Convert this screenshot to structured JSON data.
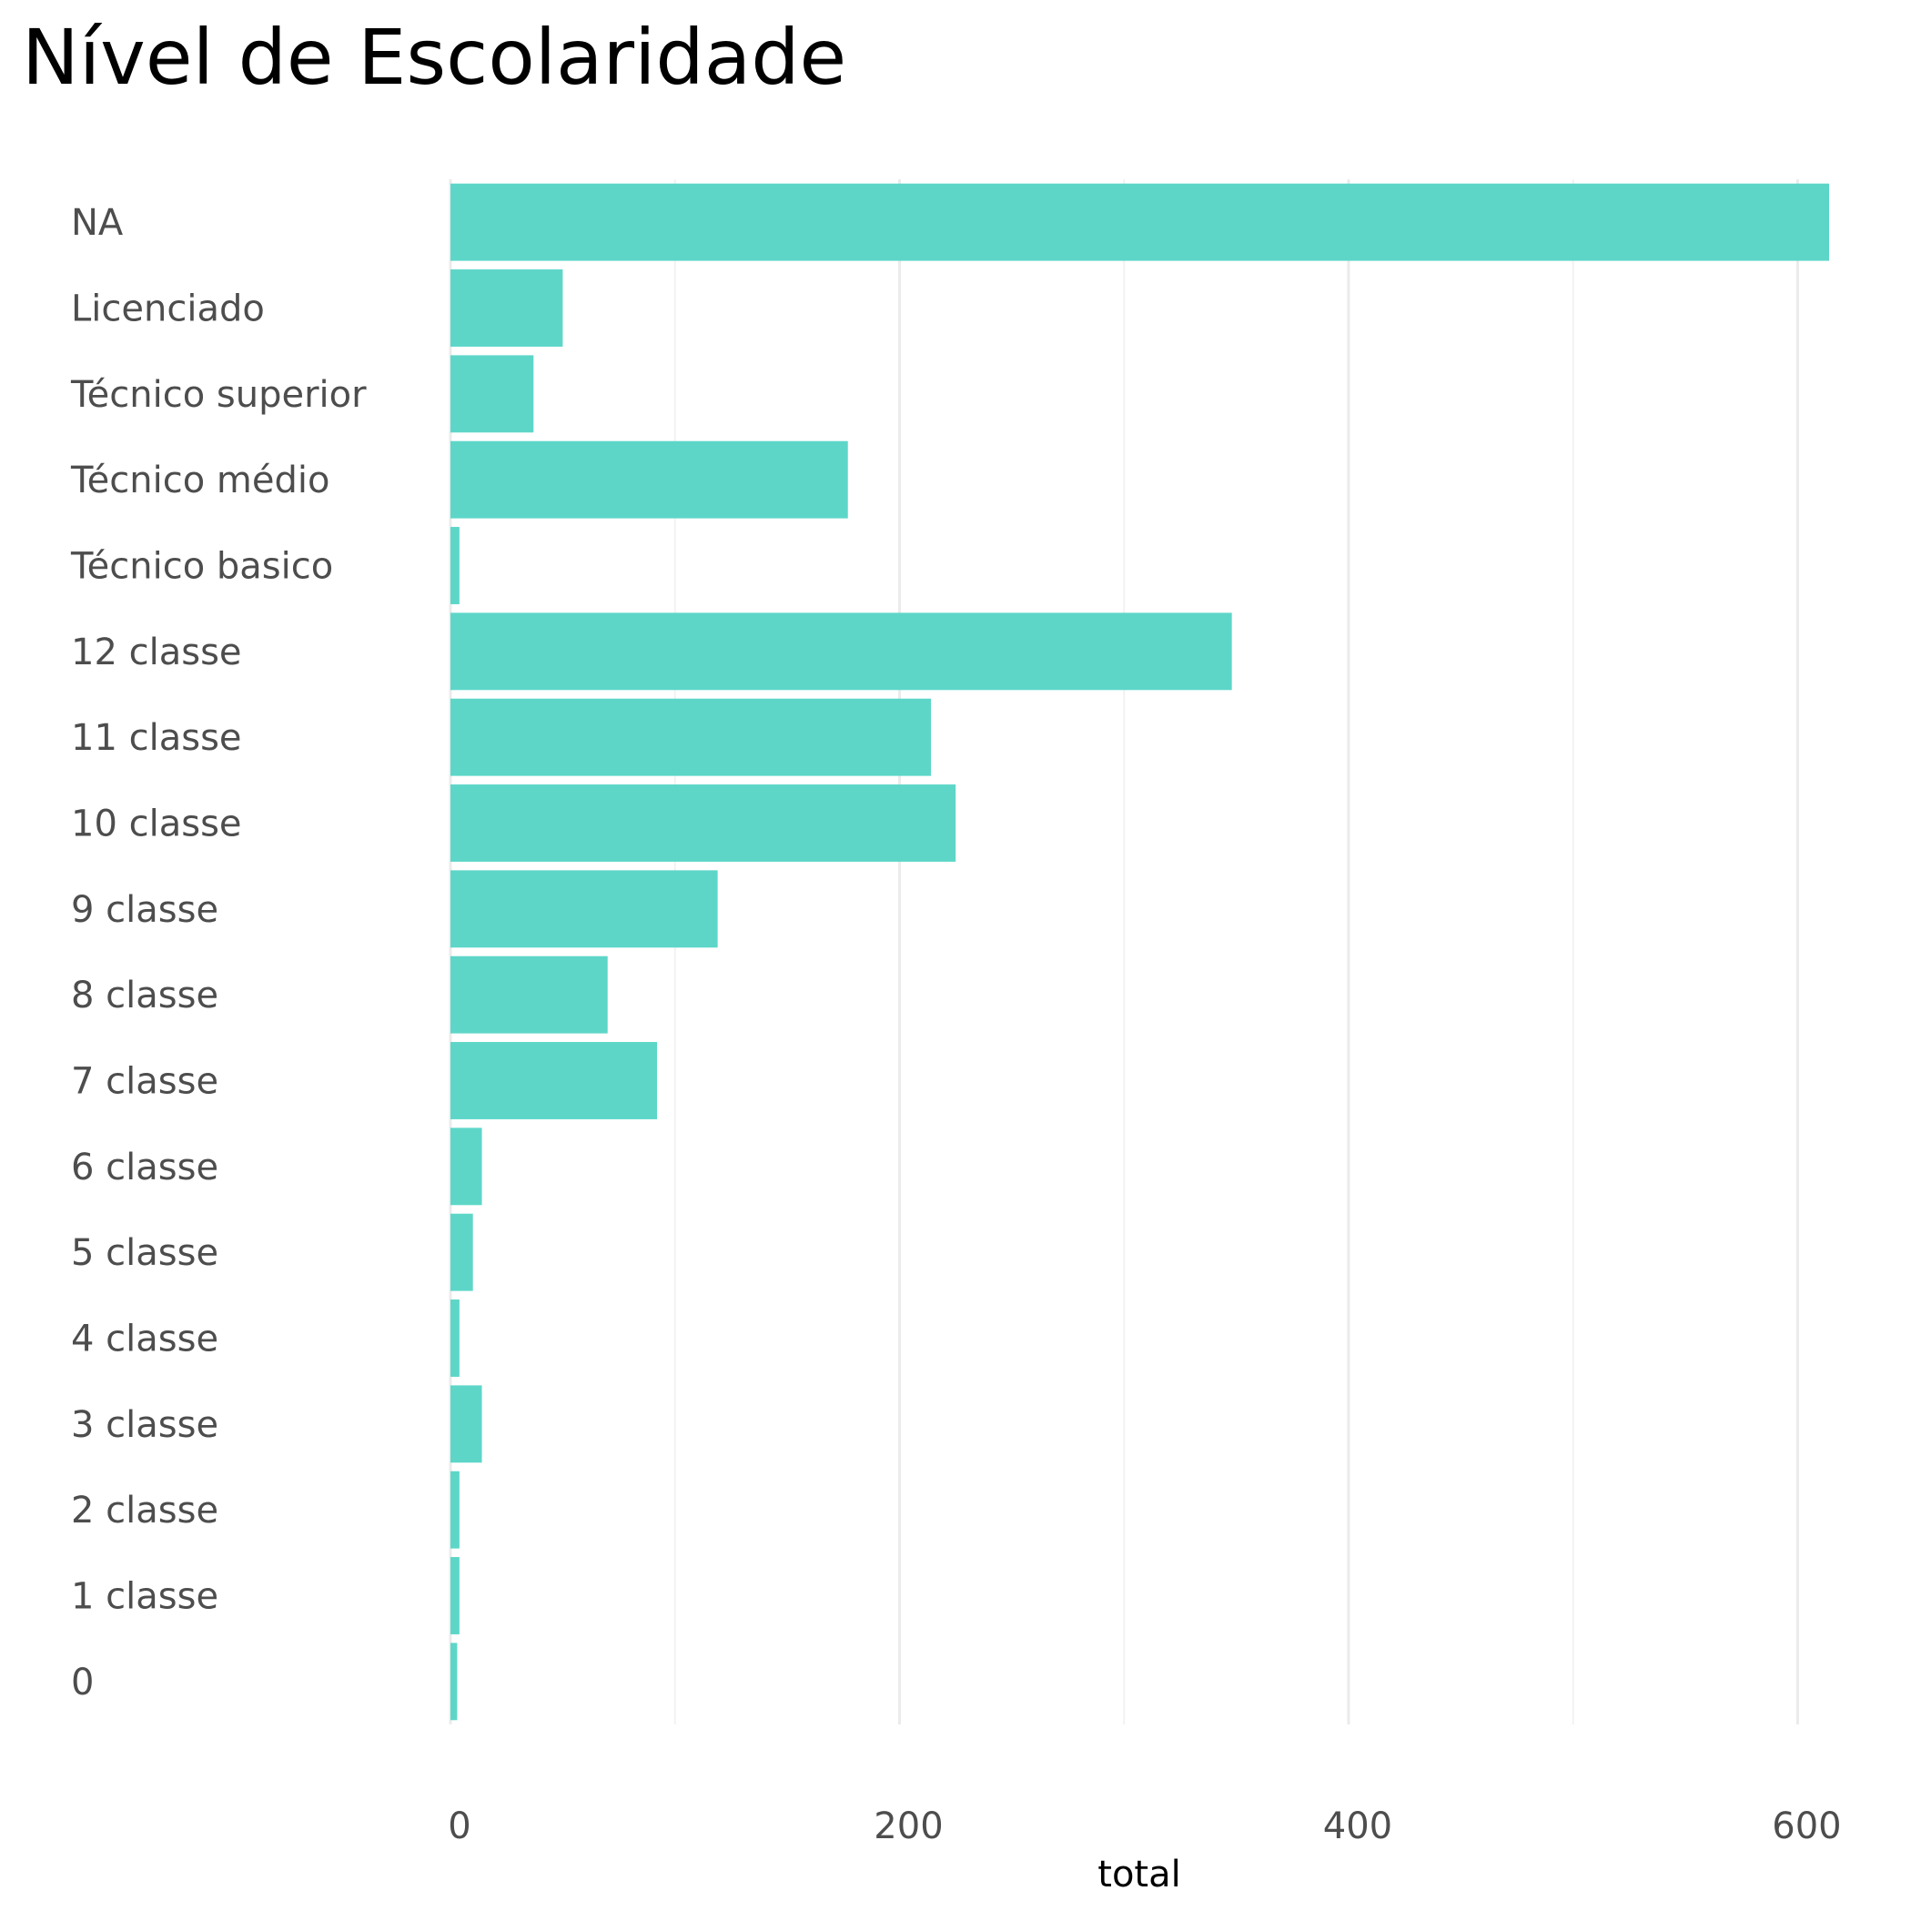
{
  "chart_data": {
    "type": "bar",
    "orientation": "horizontal",
    "title": "Nível de Escolaridade",
    "xlabel": "total",
    "ylabel": "",
    "categories": [
      "NA",
      "Licenciado",
      "Técnico superior",
      "Técnico médio",
      "Técnico basico",
      "12 classe",
      "11 classe",
      "10 classe",
      "9 classe",
      "8 classe",
      "7 classe",
      "6 classe",
      "5 classe",
      "4 classe",
      "3 classe",
      "2 classe",
      "1 classe",
      "0"
    ],
    "values": [
      614,
      50,
      37,
      177,
      4,
      348,
      214,
      225,
      119,
      70,
      92,
      14,
      10,
      4,
      14,
      4,
      4,
      3
    ],
    "xlim": [
      0,
      614
    ],
    "x_ticks": [
      "0",
      "200",
      "400",
      "600"
    ],
    "grid": true,
    "legend": "none",
    "bar_color": "#5dd6c8"
  }
}
